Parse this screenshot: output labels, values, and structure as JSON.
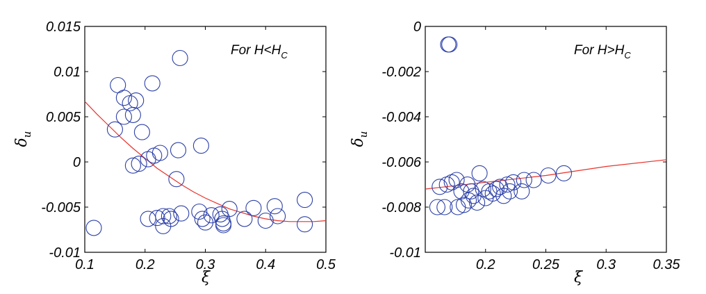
{
  "colors": {
    "marker": "#2b3fa8",
    "fit": "#e8312a"
  },
  "chart_data": [
    {
      "type": "scatter",
      "annotation": {
        "text": "For H<H",
        "subscript": "C"
      },
      "xlabel": "ξ",
      "ylabel": {
        "text": "δ",
        "subscript": "u"
      },
      "xlim": [
        0.1,
        0.5
      ],
      "ylim": [
        -0.01,
        0.015
      ],
      "xticks": [
        0.1,
        0.2,
        0.3,
        0.4,
        0.5
      ],
      "xtick_labels": [
        "0.1",
        "0.2",
        "0.3",
        "0.4",
        "0.5"
      ],
      "yticks": [
        -0.01,
        -0.005,
        0,
        0.005,
        0.01,
        0.015
      ],
      "ytick_labels": [
        "-0.01",
        "-0.005",
        "0",
        "0.005",
        "0.01",
        "0.015"
      ],
      "grid": false,
      "marker": "open-circle",
      "points": [
        [
          0.115,
          -0.0073
        ],
        [
          0.15,
          0.0036
        ],
        [
          0.155,
          0.0085
        ],
        [
          0.165,
          0.0071
        ],
        [
          0.165,
          0.005
        ],
        [
          0.175,
          0.0065
        ],
        [
          0.18,
          0.0052
        ],
        [
          0.185,
          0.0068
        ],
        [
          0.18,
          -0.0004
        ],
        [
          0.19,
          -0.0002
        ],
        [
          0.195,
          0.0033
        ],
        [
          0.205,
          0.0003
        ],
        [
          0.205,
          -0.0063
        ],
        [
          0.212,
          0.0087
        ],
        [
          0.215,
          0.0007
        ],
        [
          0.22,
          -0.0062
        ],
        [
          0.225,
          0.001
        ],
        [
          0.23,
          -0.006
        ],
        [
          0.23,
          -0.0071
        ],
        [
          0.24,
          -0.006
        ],
        [
          0.243,
          -0.0063
        ],
        [
          0.252,
          -0.0019
        ],
        [
          0.255,
          0.0013
        ],
        [
          0.258,
          0.0115
        ],
        [
          0.26,
          -0.0057
        ],
        [
          0.29,
          -0.0055
        ],
        [
          0.293,
          0.0018
        ],
        [
          0.295,
          -0.0063
        ],
        [
          0.3,
          -0.0067
        ],
        [
          0.31,
          -0.0059
        ],
        [
          0.325,
          -0.0058
        ],
        [
          0.328,
          -0.0063
        ],
        [
          0.33,
          -0.0068
        ],
        [
          0.33,
          -0.007
        ],
        [
          0.34,
          -0.0052
        ],
        [
          0.365,
          -0.0063
        ],
        [
          0.38,
          -0.0051
        ],
        [
          0.4,
          -0.0065
        ],
        [
          0.415,
          -0.0049
        ],
        [
          0.42,
          -0.006
        ],
        [
          0.465,
          -0.0042
        ],
        [
          0.465,
          -0.0069
        ]
      ],
      "fit_curve": {
        "x": [
          0.1,
          0.12,
          0.14,
          0.16,
          0.18,
          0.2,
          0.22,
          0.24,
          0.26,
          0.28,
          0.3,
          0.32,
          0.34,
          0.36,
          0.38,
          0.4,
          0.42,
          0.44,
          0.46,
          0.48,
          0.5
        ],
        "y": [
          0.0067,
          0.0053,
          0.004,
          0.0027,
          0.0015,
          0.0004,
          -0.0007,
          -0.0016,
          -0.0025,
          -0.0033,
          -0.004,
          -0.0046,
          -0.0052,
          -0.0056,
          -0.006,
          -0.0063,
          -0.0065,
          -0.0066,
          -0.0066,
          -0.0066,
          -0.0065
        ]
      }
    },
    {
      "type": "scatter",
      "annotation": {
        "text": "For H>H",
        "subscript": "C"
      },
      "xlabel": "ξ",
      "ylabel": {
        "text": "δ",
        "subscript": "u"
      },
      "xlim": [
        0.15,
        0.35
      ],
      "ylim": [
        -0.01,
        0
      ],
      "xticks": [
        0.2,
        0.25,
        0.3,
        0.35
      ],
      "xtick_labels": [
        "0.2",
        "0.25",
        "0.3",
        "0.35"
      ],
      "yticks": [
        -0.01,
        -0.008,
        -0.006,
        -0.004,
        -0.002,
        0
      ],
      "ytick_labels": [
        "-0.01",
        "-0.008",
        "-0.006",
        "-0.004",
        "-0.002",
        "0"
      ],
      "grid": false,
      "marker": "open-circle",
      "points": [
        [
          0.169,
          -0.0008
        ],
        [
          0.17,
          -0.0008
        ],
        [
          0.16,
          -0.008
        ],
        [
          0.162,
          -0.0071
        ],
        [
          0.166,
          -0.008
        ],
        [
          0.168,
          -0.007
        ],
        [
          0.172,
          -0.0069
        ],
        [
          0.176,
          -0.0068
        ],
        [
          0.177,
          -0.008
        ],
        [
          0.18,
          -0.0073
        ],
        [
          0.182,
          -0.0079
        ],
        [
          0.185,
          -0.007
        ],
        [
          0.186,
          -0.0077
        ],
        [
          0.188,
          -0.0073
        ],
        [
          0.19,
          -0.0075
        ],
        [
          0.193,
          -0.0078
        ],
        [
          0.195,
          -0.0065
        ],
        [
          0.198,
          -0.0072
        ],
        [
          0.2,
          -0.0076
        ],
        [
          0.203,
          -0.0073
        ],
        [
          0.206,
          -0.0074
        ],
        [
          0.209,
          -0.0072
        ],
        [
          0.212,
          -0.0071
        ],
        [
          0.215,
          -0.0075
        ],
        [
          0.218,
          -0.007
        ],
        [
          0.22,
          -0.0073
        ],
        [
          0.223,
          -0.0069
        ],
        [
          0.23,
          -0.0073
        ],
        [
          0.232,
          -0.0068
        ],
        [
          0.24,
          -0.0068
        ],
        [
          0.252,
          -0.0066
        ],
        [
          0.265,
          -0.0065
        ]
      ],
      "fit_curve": {
        "x": [
          0.15,
          0.2,
          0.25,
          0.3,
          0.35
        ],
        "y": [
          -0.0072,
          -0.0069,
          -0.0066,
          -0.0062,
          -0.0059
        ]
      }
    }
  ]
}
